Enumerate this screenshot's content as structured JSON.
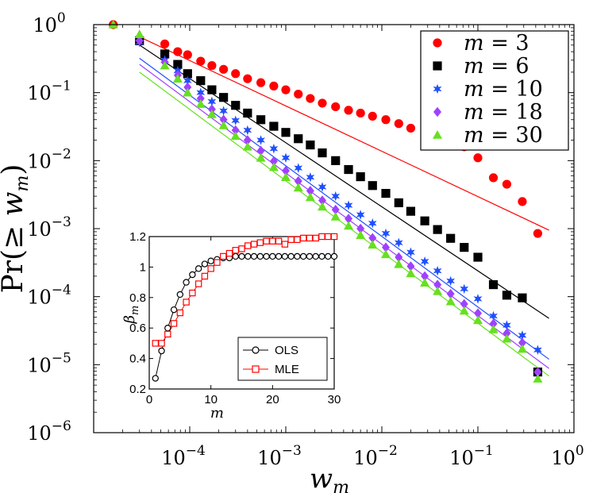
{
  "chart_data": [
    {
      "type": "scatter",
      "title": "",
      "xlabel": "w_m",
      "ylabel": "Pr(≥ w_m)",
      "xscale": "log",
      "yscale": "log",
      "xlim": [
        1e-05,
        1
      ],
      "ylim": [
        1e-06,
        1
      ],
      "x_tick_values": [
        0.0001,
        0.001,
        0.01,
        0.1,
        1
      ],
      "x_tick_labels": [
        {
          "base": "10",
          "exp": "−4"
        },
        {
          "base": "10",
          "exp": "−3"
        },
        {
          "base": "10",
          "exp": "−2"
        },
        {
          "base": "10",
          "exp": "−1"
        },
        {
          "base": "10",
          "exp": "0"
        }
      ],
      "y_tick_values": [
        1e-06,
        1e-05,
        0.0001,
        0.001,
        0.01,
        0.1,
        1
      ],
      "y_tick_labels": [
        {
          "base": "10",
          "exp": "−6"
        },
        {
          "base": "10",
          "exp": "−5"
        },
        {
          "base": "10",
          "exp": "−4"
        },
        {
          "base": "10",
          "exp": "−3"
        },
        {
          "base": "10",
          "exp": "−2"
        },
        {
          "base": "10",
          "exp": "−1"
        },
        {
          "base": "10",
          "exp": "0"
        }
      ],
      "legend_position": "top-right",
      "series": [
        {
          "name": "m = 3",
          "name_var": "m",
          "name_eq": " = ",
          "name_val": "3",
          "color": "#ff0000",
          "marker": "circle",
          "x": [
            1.6e-05,
            5.5e-05,
            7.5e-05,
            9.5e-05,
            0.00013,
            0.00017,
            0.000225,
            0.0003,
            0.0004,
            0.00055,
            0.00075,
            0.001,
            0.00135,
            0.0018,
            0.0024,
            0.0033,
            0.0045,
            0.006,
            0.008,
            0.011,
            0.015,
            0.02,
            0.028,
            0.038,
            0.052,
            0.072,
            0.1,
            0.145,
            0.2,
            0.29,
            0.42
          ],
          "y": [
            1,
            0.52,
            0.4,
            0.36,
            0.29,
            0.25,
            0.22,
            0.19,
            0.16,
            0.14,
            0.125,
            0.11,
            0.095,
            0.082,
            0.07,
            0.062,
            0.055,
            0.05,
            0.045,
            0.04,
            0.035,
            0.03,
            0.026,
            0.022,
            0.019,
            0.016,
            0.011,
            0.0056,
            0.0045,
            0.0025,
            0.00085
          ],
          "fit": {
            "x": [
              3e-05,
              0.55
            ],
            "y": [
              0.66,
              0.00095
            ]
          }
        },
        {
          "name": "m = 6",
          "name_var": "m",
          "name_eq": " = ",
          "name_val": "6",
          "color": "#000000",
          "marker": "square",
          "x": [
            3e-05,
            5.5e-05,
            7.5e-05,
            9.5e-05,
            0.00013,
            0.00017,
            0.000225,
            0.0003,
            0.0004,
            0.00055,
            0.00075,
            0.001,
            0.00135,
            0.0018,
            0.0024,
            0.0033,
            0.0045,
            0.006,
            0.008,
            0.011,
            0.015,
            0.02,
            0.028,
            0.038,
            0.052,
            0.072,
            0.1,
            0.145,
            0.2,
            0.29,
            0.42
          ],
          "y": [
            0.58,
            0.37,
            0.26,
            0.19,
            0.15,
            0.11,
            0.085,
            0.065,
            0.05,
            0.04,
            0.032,
            0.026,
            0.021,
            0.017,
            0.013,
            0.01,
            0.0074,
            0.0058,
            0.0043,
            0.0033,
            0.0024,
            0.0018,
            0.0013,
            0.00097,
            0.00072,
            0.00053,
            0.00038,
            0.00015,
            0.000105,
            9.6e-05,
            7.8e-06
          ],
          "fit": {
            "x": [
              3e-05,
              0.55
            ],
            "y": [
              0.5,
              4.8e-05
            ]
          }
        },
        {
          "name": "m = 10",
          "name_var": "m",
          "name_eq": " = ",
          "name_val": "10",
          "color": "#1f4fff",
          "marker": "star",
          "x": [
            3e-05,
            5.5e-05,
            7.5e-05,
            9.5e-05,
            0.00013,
            0.00017,
            0.000225,
            0.0003,
            0.0004,
            0.00055,
            0.00075,
            0.001,
            0.00135,
            0.0018,
            0.0024,
            0.0033,
            0.0045,
            0.006,
            0.008,
            0.011,
            0.015,
            0.02,
            0.028,
            0.038,
            0.052,
            0.072,
            0.1,
            0.145,
            0.2,
            0.29,
            0.42
          ],
          "y": [
            0.55,
            0.3,
            0.21,
            0.15,
            0.1,
            0.074,
            0.054,
            0.039,
            0.028,
            0.02,
            0.015,
            0.011,
            0.0078,
            0.0057,
            0.0041,
            0.003,
            0.0022,
            0.0016,
            0.0012,
            0.00085,
            0.00062,
            0.00045,
            0.00033,
            0.00024,
            0.00017,
            0.00013,
            9.3e-05,
            5.2e-05,
            3.8e-05,
            2.7e-05,
            1.65e-05
          ],
          "fit": {
            "x": [
              3e-05,
              0.55
            ],
            "y": [
              0.32,
              1.2e-05
            ]
          }
        },
        {
          "name": "m = 18",
          "name_var": "m",
          "name_eq": " = ",
          "name_val": "18",
          "color": "#a040ff",
          "marker": "diamond",
          "x": [
            3e-05,
            5.5e-05,
            7.5e-05,
            9.5e-05,
            0.00013,
            0.00017,
            0.000225,
            0.0003,
            0.0004,
            0.00055,
            0.00075,
            0.001,
            0.00135,
            0.0018,
            0.0024,
            0.0033,
            0.0045,
            0.006,
            0.008,
            0.011,
            0.015,
            0.02,
            0.028,
            0.038,
            0.052,
            0.072,
            0.1,
            0.145,
            0.2,
            0.29,
            0.42
          ],
          "y": [
            0.58,
            0.28,
            0.18,
            0.12,
            0.082,
            0.057,
            0.04,
            0.028,
            0.02,
            0.014,
            0.0098,
            0.0071,
            0.005,
            0.0036,
            0.0026,
            0.0019,
            0.0014,
            0.001,
            0.00073,
            0.00053,
            0.00038,
            0.00028,
            0.0002,
            0.00015,
            0.00011,
            7.8e-05,
            5.7e-05,
            4e-05,
            2.9e-05,
            2.1e-05,
            7.8e-06
          ],
          "fit": {
            "x": [
              3e-05,
              0.55
            ],
            "y": [
              0.26,
              8.8e-06
            ]
          }
        },
        {
          "name": "m = 30",
          "name_var": "m",
          "name_eq": " = ",
          "name_val": "30",
          "color": "#66e020",
          "marker": "triangle",
          "x": [
            1.6e-05,
            3e-05,
            5.5e-05,
            7.5e-05,
            9.5e-05,
            0.00013,
            0.00017,
            0.000225,
            0.0003,
            0.0004,
            0.00055,
            0.00075,
            0.001,
            0.00135,
            0.0018,
            0.0024,
            0.0033,
            0.0045,
            0.006,
            0.008,
            0.011,
            0.015,
            0.02,
            0.028,
            0.038,
            0.052,
            0.072,
            0.1,
            0.145,
            0.2,
            0.29,
            0.42
          ],
          "y": [
            1,
            0.72,
            0.25,
            0.16,
            0.1,
            0.068,
            0.048,
            0.033,
            0.023,
            0.016,
            0.011,
            0.008,
            0.0057,
            0.004,
            0.0029,
            0.0021,
            0.0015,
            0.0011,
            0.0008,
            0.00058,
            0.00042,
            0.0003,
            0.00022,
            0.00016,
            0.00012,
            8.5e-05,
            6.2e-05,
            4.5e-05,
            3.3e-05,
            2.4e-05,
            1.7e-05,
            6.2e-06
          ],
          "fit": {
            "x": [
              3e-05,
              0.55
            ],
            "y": [
              0.2,
              6.8e-06
            ]
          }
        }
      ]
    },
    {
      "type": "line",
      "title": "",
      "xlabel": "m",
      "ylabel": "β_m",
      "ylabel_base": "β",
      "ylabel_sub": "m",
      "xlim": [
        0,
        30
      ],
      "ylim": [
        0.2,
        1.2
      ],
      "x_ticks": [
        0,
        10,
        20,
        30
      ],
      "y_ticks": [
        0.2,
        0.4,
        0.6,
        0.8,
        1,
        1.2
      ],
      "y_tick_labels": [
        "0.2",
        "0.4",
        "0.6",
        "0.8",
        "1",
        "1.2"
      ],
      "legend_position": "bottom-right",
      "series": [
        {
          "name": "OLS",
          "color": "#000000",
          "marker": "circle",
          "x": [
            1,
            2,
            3,
            4,
            5,
            6,
            7,
            8,
            9,
            10,
            11,
            12,
            13,
            14,
            15,
            16,
            17,
            18,
            19,
            20,
            21,
            22,
            23,
            24,
            25,
            26,
            27,
            28,
            29,
            30
          ],
          "y": [
            0.27,
            0.45,
            0.6,
            0.72,
            0.82,
            0.9,
            0.95,
            0.99,
            1.02,
            1.04,
            1.05,
            1.06,
            1.06,
            1.07,
            1.07,
            1.07,
            1.07,
            1.07,
            1.07,
            1.07,
            1.07,
            1.07,
            1.07,
            1.07,
            1.07,
            1.07,
            1.07,
            1.07,
            1.07,
            1.07
          ]
        },
        {
          "name": "MLE",
          "color": "#ff0000",
          "marker": "square",
          "x": [
            1,
            2,
            3,
            4,
            5,
            6,
            7,
            8,
            9,
            10,
            11,
            12,
            13,
            14,
            15,
            16,
            17,
            18,
            19,
            20,
            21,
            22,
            23,
            24,
            25,
            26,
            27,
            28,
            29,
            30
          ],
          "y": [
            0.5,
            0.5,
            0.56,
            0.63,
            0.7,
            0.77,
            0.83,
            0.89,
            0.94,
            0.99,
            1.03,
            1.07,
            1.09,
            1.11,
            1.12,
            1.14,
            1.15,
            1.16,
            1.17,
            1.17,
            1.17,
            1.15,
            1.18,
            1.18,
            1.19,
            1.19,
            1.19,
            1.2,
            1.2,
            1.2
          ]
        }
      ]
    }
  ]
}
